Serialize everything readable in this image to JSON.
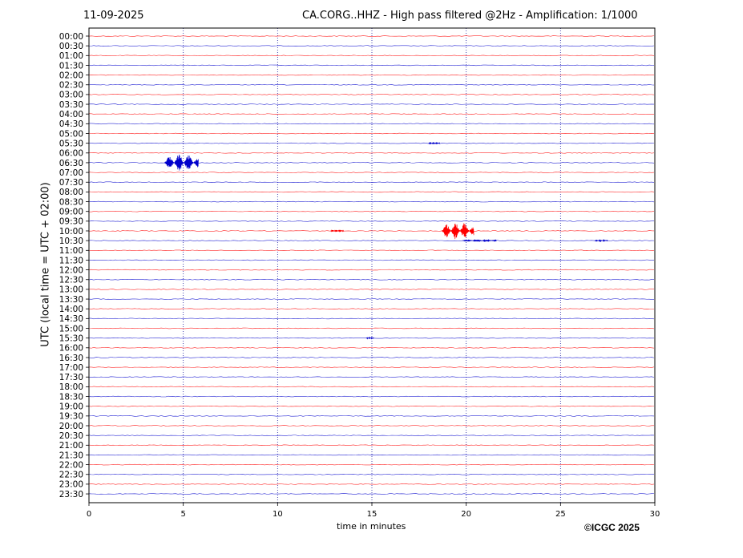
{
  "header": {
    "date": "11-09-2025",
    "title": "CA.CORG..HHZ - High pass filtered @2Hz - Amplification: 1/1000"
  },
  "footer": {
    "copyright": "©ICGC 2025"
  },
  "chart_data": {
    "type": "line",
    "title": "CA.CORG..HHZ - High pass filtered @2Hz - Amplification: 1/1000",
    "xlabel": "time in minutes",
    "ylabel": "UTC (local time = UTC + 02:00)",
    "xlim": [
      0,
      30
    ],
    "x_ticks": [
      0,
      5,
      10,
      15,
      20,
      25,
      30
    ],
    "x_grid": "dotted vertical lines at 5, 10, 15, 20, 25",
    "trace_labels": [
      "00:00",
      "00:30",
      "01:00",
      "01:30",
      "02:00",
      "02:30",
      "03:00",
      "03:30",
      "04:00",
      "04:30",
      "05:00",
      "05:30",
      "06:00",
      "06:30",
      "07:00",
      "07:30",
      "08:00",
      "08:30",
      "09:00",
      "09:30",
      "10:00",
      "10:30",
      "11:00",
      "11:30",
      "12:00",
      "12:30",
      "13:00",
      "13:30",
      "14:00",
      "14:30",
      "15:00",
      "15:30",
      "16:00",
      "16:30",
      "17:00",
      "17:30",
      "18:00",
      "18:30",
      "19:00",
      "19:30",
      "20:00",
      "20:30",
      "21:00",
      "21:30",
      "22:00",
      "22:30",
      "23:00",
      "23:30"
    ],
    "trace_colors": [
      "#ff0000",
      "#0000cc"
    ],
    "events": [
      {
        "trace": "06:30",
        "start_min": 4.0,
        "end_min": 5.8,
        "amplitude": 1.0,
        "color": "#0000cc"
      },
      {
        "trace": "10:00",
        "start_min": 18.7,
        "end_min": 20.4,
        "amplitude": 1.0,
        "color": "#ff0000"
      },
      {
        "trace": "10:00",
        "start_min": 12.8,
        "end_min": 13.5,
        "amplitude": 0.12,
        "color": "#ff0000"
      },
      {
        "trace": "10:30",
        "start_min": 19.8,
        "end_min": 21.6,
        "amplitude": 0.12,
        "color": "#0000cc"
      },
      {
        "trace": "10:30",
        "start_min": 26.8,
        "end_min": 27.5,
        "amplitude": 0.08,
        "color": "#0000cc"
      },
      {
        "trace": "05:30",
        "start_min": 18.0,
        "end_min": 18.6,
        "amplitude": 0.1,
        "color": "#0000cc"
      },
      {
        "trace": "15:30",
        "start_min": 14.7,
        "end_min": 15.1,
        "amplitude": 0.1,
        "color": "#0000cc"
      }
    ]
  }
}
